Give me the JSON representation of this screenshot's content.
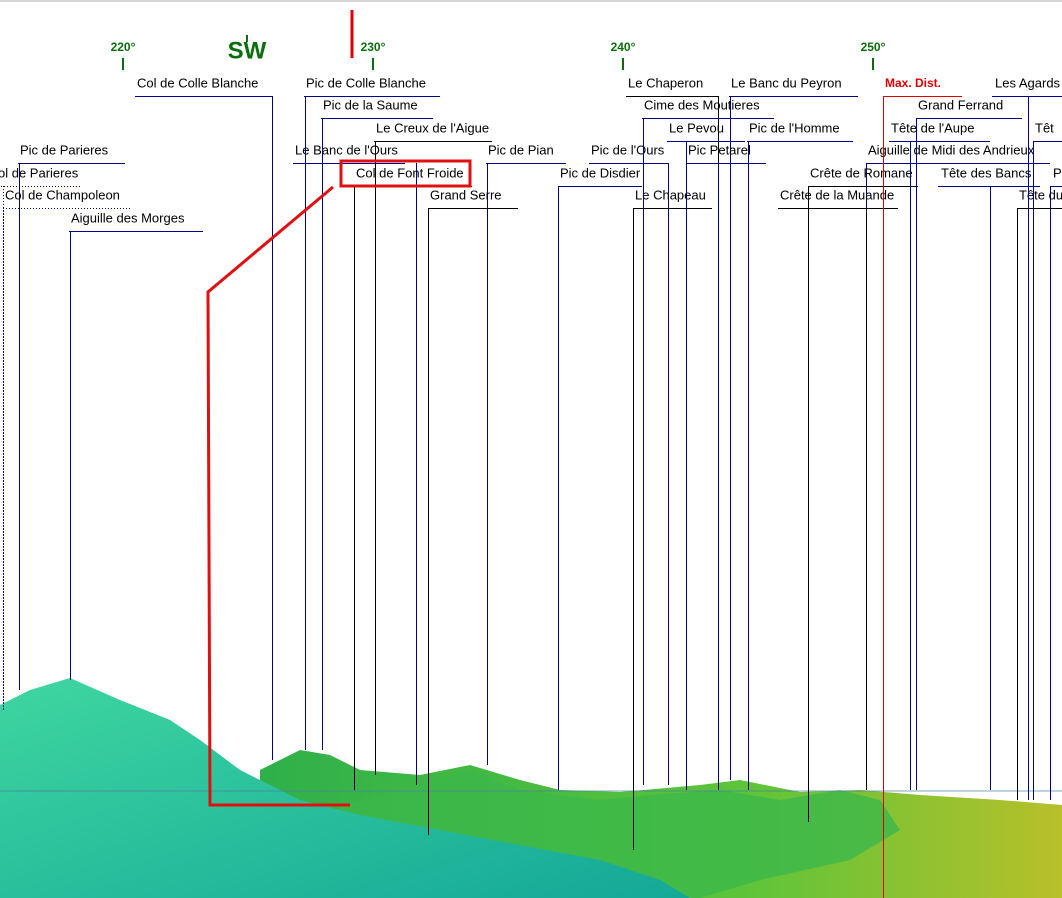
{
  "compass": [
    "220°",
    "SW",
    "230°",
    "240°",
    "250°"
  ],
  "peaks": [
    "Col de Colle Blanche",
    "Pic de Colle Blanche",
    "Pic de la Saume",
    "Le Creux de l'Aigue",
    "Pic de Parieres",
    "Le Banc de l'Ours",
    "Pic de Pian",
    "Pic de l'Ours",
    "Aiguille de Midi des Andrieux",
    "ol de Parieres",
    "Col de Font Froide",
    "Pic de Disdier",
    "Crête de Romane",
    "Tête des Bancs",
    "P",
    "Col de Champoleon",
    "Grand Serre",
    "Le Chapeau",
    "Crête de la Muande",
    "Tête du",
    "Aiguille des Morges",
    "Le Chaperon",
    "Le Banc du Peyron",
    "Max. Dist.",
    "Les Agards",
    "Cime des Moutieres",
    "Grand Ferrand",
    "Le Pevou",
    "Pic de l'Homme",
    "Tête de l'Aupe",
    "Têt",
    "Pic Petarel"
  ]
}
